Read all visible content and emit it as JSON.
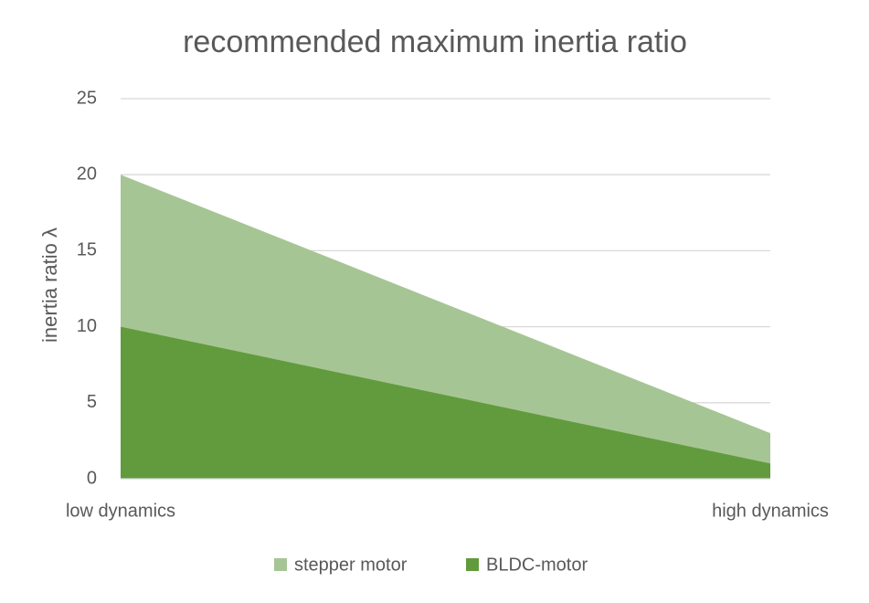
{
  "chart_data": {
    "type": "area",
    "title": "recommended maximum inertia ratio",
    "y_label": "inertia ratio λ",
    "categories": [
      "low dynamics",
      "high dynamics"
    ],
    "series": [
      {
        "name": "stepper motor",
        "color": "#a6c594",
        "values": [
          20,
          3
        ]
      },
      {
        "name": "BLDC-motor",
        "color": "#619b3d",
        "values": [
          10,
          1
        ]
      }
    ],
    "ylim": [
      0,
      25
    ],
    "yticks": [
      0,
      5,
      10,
      15,
      20,
      25
    ],
    "grid": true,
    "legend": "bottom"
  }
}
